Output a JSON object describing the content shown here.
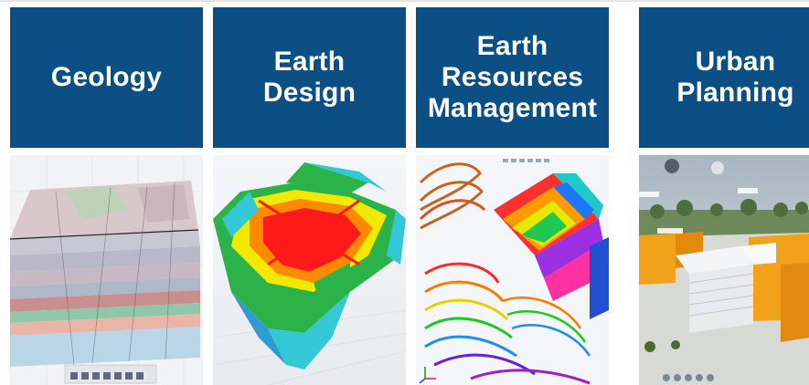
{
  "tiles": [
    {
      "label": "Geology"
    },
    {
      "label": "Earth\nDesign"
    },
    {
      "label": "Earth\nResources\nManagement"
    },
    {
      "label": "Urban\nPlanning"
    }
  ],
  "colors": {
    "tile_bg": "#0b4f84",
    "tile_text": "#ffffff"
  }
}
